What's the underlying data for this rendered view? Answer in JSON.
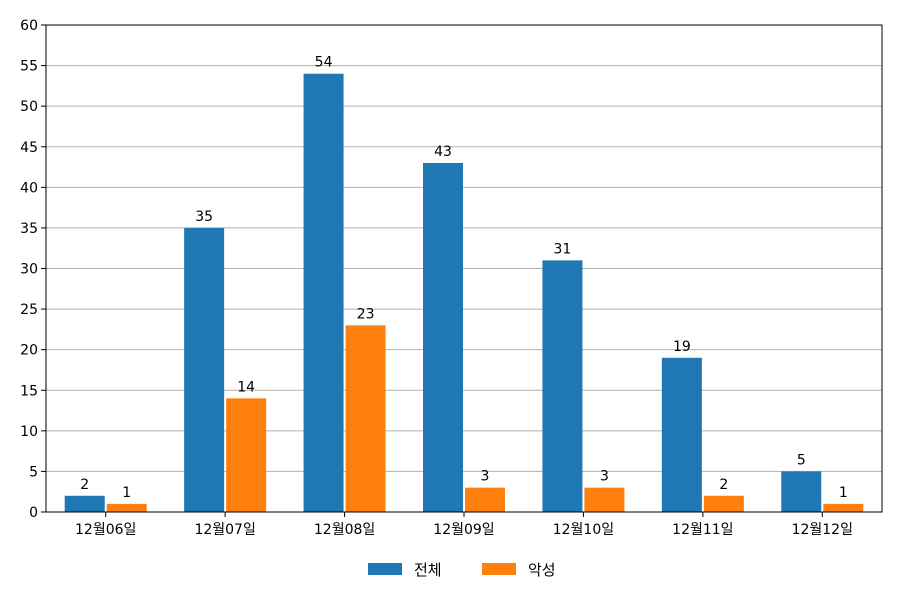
{
  "chart_data": {
    "type": "bar",
    "title": "",
    "xlabel": "",
    "ylabel": "",
    "categories": [
      "12월06일",
      "12월07일",
      "12월08일",
      "12월09일",
      "12월10일",
      "12월11일",
      "12월12일"
    ],
    "series": [
      {
        "name": "전체",
        "values": [
          2,
          35,
          54,
          43,
          31,
          19,
          5
        ]
      },
      {
        "name": "악성",
        "values": [
          1,
          14,
          23,
          3,
          3,
          2,
          1
        ]
      }
    ],
    "ylim": [
      0,
      60
    ],
    "yticks": [
      0,
      5,
      10,
      15,
      20,
      25,
      30,
      35,
      40,
      45,
      50,
      55,
      60
    ],
    "grid": "horizontal",
    "legend_position": "bottom-center",
    "data_labels": true
  },
  "colors": {
    "series": [
      "#1f77b4",
      "#ff7f0e"
    ],
    "grid": "#b0b0b0",
    "axis": "#000000"
  }
}
